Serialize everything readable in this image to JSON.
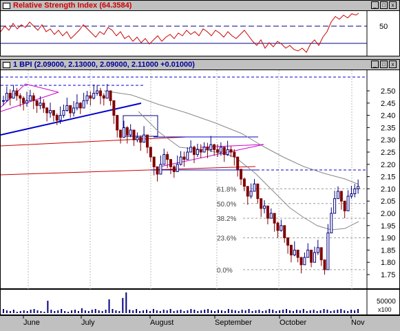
{
  "rsi_panel": {
    "title": "Relative Strength Index",
    "value": "(64.3584)",
    "axis_label": "50"
  },
  "price_panel": {
    "title_prefix": "1 BPI",
    "ohlc": "(2.09000, 2.13000, 2.09000, 2.11000 +0.01000)",
    "y_ticks": [
      "2.50",
      "2.45",
      "2.40",
      "2.35",
      "2.30",
      "2.25",
      "2.20",
      "2.15",
      "2.10",
      "2.05",
      "2.00",
      "1.95",
      "1.90",
      "1.85",
      "1.80",
      "1.75"
    ],
    "fib_labels": [
      "61.8%",
      "50.0%",
      "38.2%",
      "23.6%",
      "0.0%"
    ]
  },
  "volume_panel": {
    "axis_label": "50000",
    "multiplier": "x100"
  },
  "x_axis": {
    "months": [
      "June",
      "July",
      "August",
      "September",
      "October",
      "Nov"
    ]
  },
  "window_buttons": {
    "minimize": "_",
    "maximize": "□",
    "close": "x"
  },
  "colors": {
    "rsi_line": "#cc0000",
    "title_red": "#cc0000",
    "title_blue": "#000099",
    "trend_red": "#cc0000",
    "trend_blue": "#0000cc",
    "trend_magenta": "#cc00cc",
    "up_bar": "#000080",
    "down_bar": "#800000"
  }
}
